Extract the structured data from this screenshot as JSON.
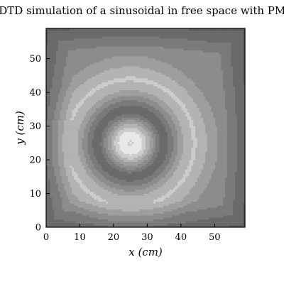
{
  "chart_data": {
    "type": "heatmap",
    "subtype": "filled-contour",
    "title": "FDTD simulation of a sinusoidal in free space with PML",
    "xlabel": "x (cm)",
    "ylabel": "y (cm)",
    "xlim": [
      0,
      59
    ],
    "ylim": [
      0,
      59
    ],
    "x_ticks": [
      0,
      10,
      20,
      30,
      40,
      50
    ],
    "y_ticks": [
      0,
      10,
      20,
      30,
      40,
      50
    ],
    "source_center": [
      25,
      25
    ],
    "colormap": "gray",
    "colorbar": false,
    "legend": "none",
    "grid": false,
    "field_samples": [
      {
        "r": 0.0,
        "value": 0.95
      },
      {
        "r": 0.6,
        "value": 0.85
      },
      {
        "r": 1.2,
        "value": 0.98
      },
      {
        "r": 2.5,
        "value": 0.96
      },
      {
        "r": 3.5,
        "value": 0.9
      },
      {
        "r": 4.5,
        "value": 0.82
      },
      {
        "r": 5.5,
        "value": 0.72
      },
      {
        "r": 6.5,
        "value": 0.62
      },
      {
        "r": 7.5,
        "value": 0.52
      },
      {
        "r": 8.5,
        "value": 0.42
      },
      {
        "r": 10.0,
        "value": 0.32
      },
      {
        "r": 11.5,
        "value": 0.42
      },
      {
        "r": 13.0,
        "value": 0.52
      },
      {
        "r": 14.5,
        "value": 0.62
      },
      {
        "r": 16.0,
        "value": 0.72
      },
      {
        "r": 19.0,
        "value": 0.82
      },
      {
        "r": 22.0,
        "value": 0.72
      },
      {
        "r": 26.0,
        "value": 0.6
      },
      {
        "r": 32.0,
        "value": 0.55
      },
      {
        "r": 40.0,
        "value": 0.5
      }
    ],
    "levels": [
      0.1,
      0.2,
      0.3,
      0.4,
      0.5,
      0.6,
      0.7,
      0.8,
      0.9
    ],
    "gray_levels": [
      "#3a3a3a",
      "#4a4a4a",
      "#5a5a5a",
      "#6a6a6a",
      "#7a7a7a",
      "#8c8c8c",
      "#9e9e9e",
      "#b3b3b3",
      "#cccccc",
      "#e8e8e8"
    ]
  }
}
